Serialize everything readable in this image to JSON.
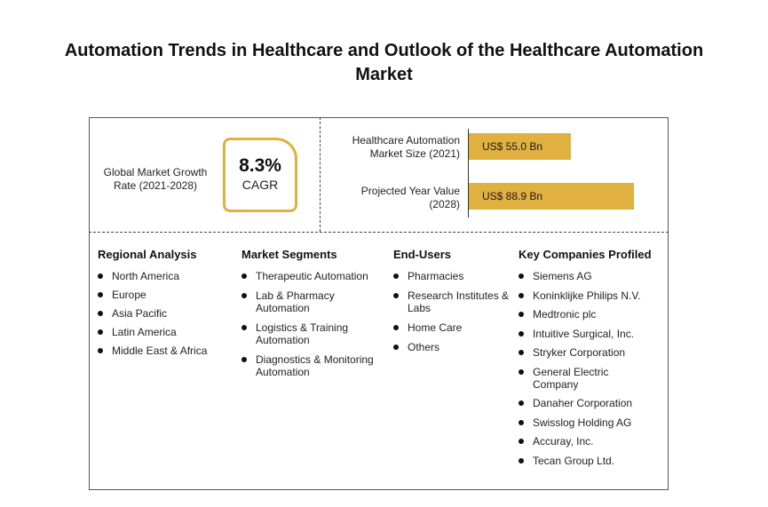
{
  "title": "Automation Trends in Healthcare and Outlook of the Healthcare Automation Market",
  "growth": {
    "label": "Global Market Growth Rate (2021-2028)",
    "value": "8.3%",
    "unit": "CAGR"
  },
  "chart_data": {
    "type": "bar",
    "orientation": "horizontal",
    "categories": [
      "Healthcare Automation Market Size (2021)",
      "Projected Year Value (2028)"
    ],
    "values": [
      55.0,
      88.9
    ],
    "value_labels": [
      "US$ 55.0 Bn",
      "US$ 88.9 Bn"
    ],
    "units": "US$ Bn"
  },
  "colors": {
    "accent": "#e0b040"
  },
  "regional": {
    "title": "Regional Analysis",
    "items": [
      "North America",
      "Europe",
      "Asia Pacific",
      "Latin America",
      "Middle East & Africa"
    ]
  },
  "segments": {
    "title": "Market Segments",
    "items": [
      "Therapeutic Automation",
      "Lab & Pharmacy Automation",
      "Logistics & Training Automation",
      "Diagnostics & Monitoring Automation"
    ]
  },
  "endusers": {
    "title": "End-Users",
    "items": [
      "Pharmacies",
      "Research Institutes & Labs",
      "Home Care",
      "Others"
    ]
  },
  "companies": {
    "title": "Key Companies Profiled",
    "items": [
      "Siemens AG",
      "Koninklijke Philips N.V.",
      "Medtronic plc",
      "Intuitive Surgical, Inc.",
      "Stryker Corporation",
      "General Electric Company",
      "Danaher Corporation",
      "Swisslog Holding AG",
      "Accuray, Inc.",
      "Tecan Group Ltd."
    ]
  }
}
